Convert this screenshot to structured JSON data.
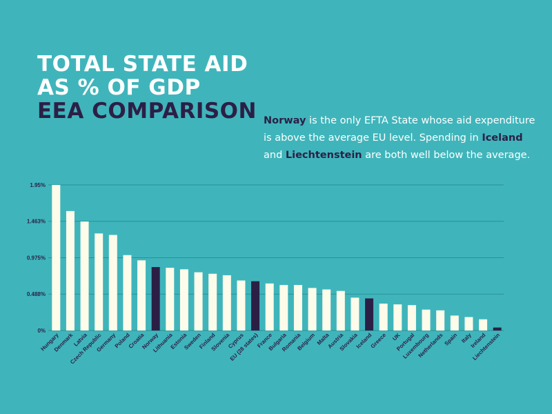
{
  "header": {
    "title_line1": "TOTAL STATE AID",
    "title_line2": "AS % OF GDP",
    "title_line3": "EEA COMPARISON"
  },
  "description": {
    "norway": "Norway",
    "part1": " is the only EFTA State whose aid expenditure is above the average EU level. Spending in ",
    "iceland": "Iceland",
    "part2": " and ",
    "liechtenstein": "Liechtenstein",
    "part3": " are both well below the average."
  },
  "colors": {
    "background": "#3fb5bb",
    "bar_default": "#fdfbe9",
    "bar_highlight": "#2c1f46",
    "gridline": "#2a8f94"
  },
  "chart_data": {
    "type": "bar",
    "title": "TOTAL STATE AID AS % OF GDP EEA COMPARISON",
    "xlabel": "",
    "ylabel": "",
    "ylim": [
      0,
      1.95
    ],
    "yticks": [
      0,
      0.488,
      0.975,
      1.463,
      1.95
    ],
    "ytick_labels": [
      "0%",
      "0.488%",
      "0.975%",
      "1.463%",
      "1.95%"
    ],
    "grid": true,
    "categories": [
      "Hungary",
      "Denmark",
      "Latvia",
      "Czech Republic",
      "Germany",
      "Poland",
      "Croatia",
      "Norway",
      "Lithuania",
      "Estonia",
      "Sweden",
      "Finland",
      "Slovenia",
      "Cyprus",
      "EU (28 states)",
      "France",
      "Bulgaria",
      "Romania",
      "Belgium",
      "Malta",
      "Austria",
      "Slovakia",
      "Iceland",
      "Greece",
      "UK",
      "Portugal",
      "Luxembourg",
      "Netherlands",
      "Spain",
      "Italy",
      "Ireland",
      "Liechtenstein"
    ],
    "values": [
      1.95,
      1.6,
      1.46,
      1.3,
      1.28,
      1.01,
      0.94,
      0.85,
      0.84,
      0.82,
      0.78,
      0.76,
      0.74,
      0.67,
      0.66,
      0.63,
      0.61,
      0.61,
      0.57,
      0.55,
      0.53,
      0.44,
      0.43,
      0.36,
      0.35,
      0.34,
      0.28,
      0.27,
      0.2,
      0.18,
      0.15,
      0.04
    ],
    "highlighted": [
      "Norway",
      "EU (28 states)",
      "Iceland",
      "Liechtenstein"
    ]
  }
}
